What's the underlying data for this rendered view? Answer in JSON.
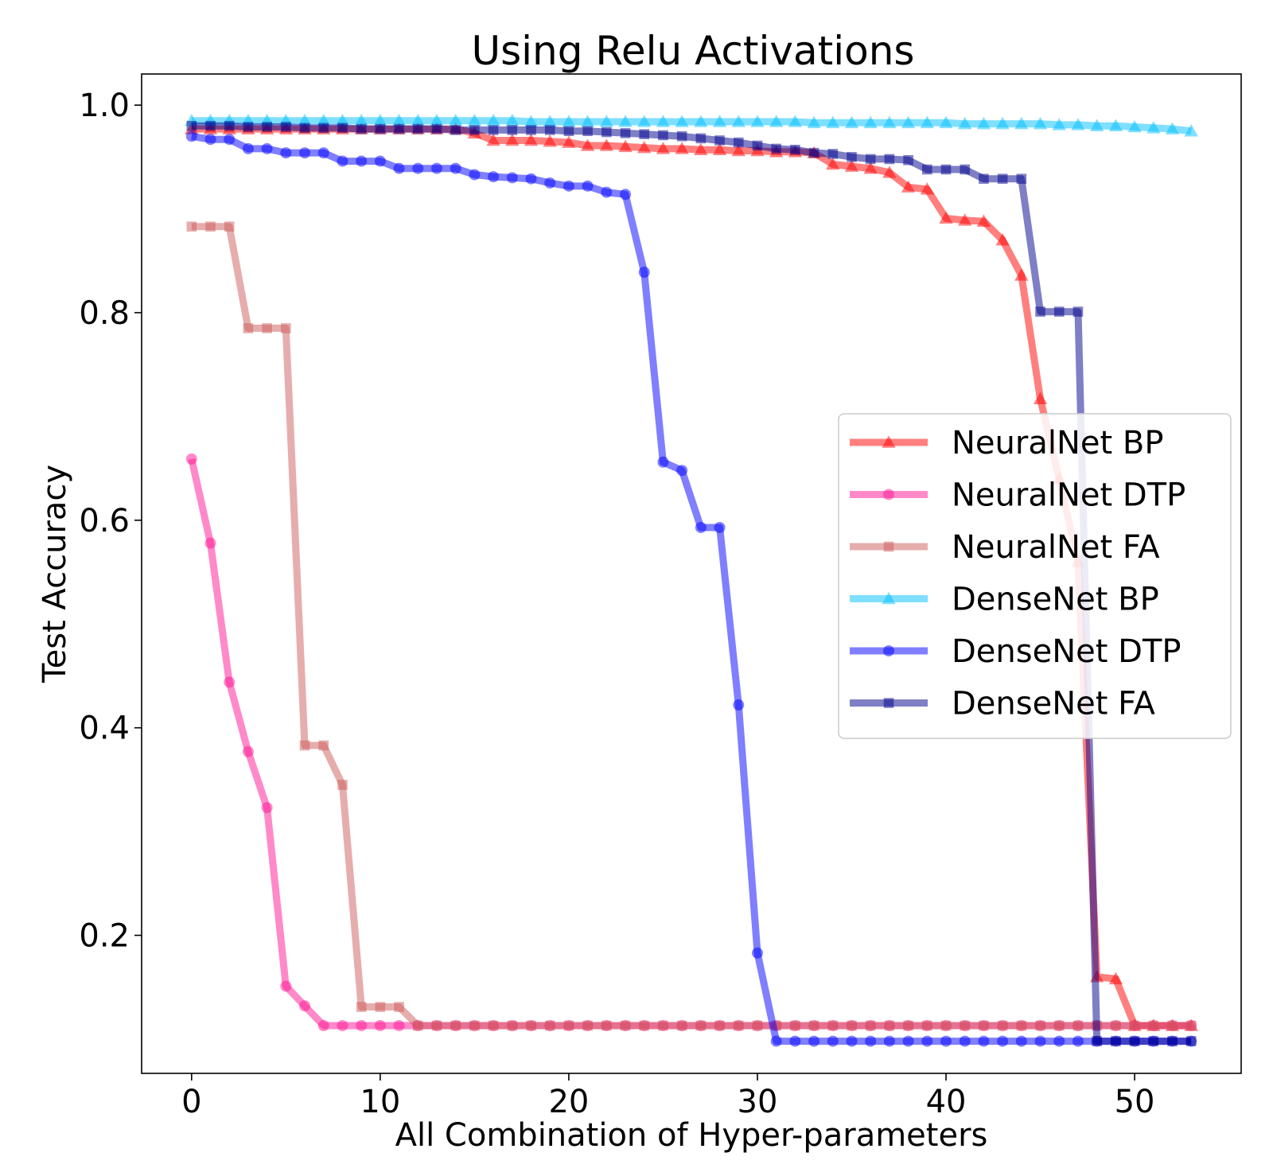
{
  "chart_data": {
    "type": "line",
    "title": "Using Relu Activations",
    "xlabel": "All Combination of Hyper-parameters",
    "ylabel": "Test Accuracy",
    "xlim": [
      -2.65,
      55.65
    ],
    "ylim": [
      0.067,
      1.03
    ],
    "xticks": [
      0,
      10,
      20,
      30,
      40,
      50
    ],
    "xtick_labels": [
      "0",
      "10",
      "20",
      "30",
      "40",
      "50"
    ],
    "yticks": [
      0.2,
      0.4,
      0.6,
      0.8,
      1.0
    ],
    "ytick_labels": [
      "0.2",
      "0.4",
      "0.6",
      "0.8",
      "1.0"
    ],
    "legend_position": "center-right",
    "series": [
      {
        "name": "NeuralNet BP",
        "color": "#ff0000",
        "marker": "triangle",
        "values": [
          0.977,
          0.977,
          0.977,
          0.977,
          0.977,
          0.977,
          0.977,
          0.977,
          0.977,
          0.977,
          0.977,
          0.977,
          0.977,
          0.977,
          0.977,
          0.973,
          0.966,
          0.966,
          0.966,
          0.965,
          0.964,
          0.961,
          0.961,
          0.96,
          0.959,
          0.958,
          0.958,
          0.957,
          0.957,
          0.956,
          0.956,
          0.955,
          0.955,
          0.954,
          0.943,
          0.941,
          0.939,
          0.935,
          0.921,
          0.919,
          0.891,
          0.889,
          0.888,
          0.87,
          0.836,
          0.717,
          0.64,
          0.56,
          0.16,
          0.158,
          0.113,
          0.113,
          0.113,
          0.113
        ]
      },
      {
        "name": "NeuralNet DTP",
        "color": "#ff1493",
        "marker": "circle",
        "values": [
          0.659,
          0.578,
          0.444,
          0.377,
          0.323,
          0.151,
          0.132,
          0.113,
          0.113,
          0.113,
          0.113,
          0.113,
          0.113,
          0.113,
          0.113,
          0.113,
          0.113,
          0.113,
          0.113,
          0.113,
          0.113,
          0.113,
          0.113,
          0.113,
          0.113,
          0.113,
          0.113,
          0.113,
          0.113,
          0.113,
          0.113,
          0.113,
          0.113,
          0.113,
          0.113,
          0.113,
          0.113,
          0.113,
          0.113,
          0.113,
          0.113,
          0.113,
          0.113,
          0.113,
          0.113,
          0.113,
          0.113,
          0.113,
          0.113,
          0.113,
          0.113,
          0.113,
          0.113,
          0.113
        ]
      },
      {
        "name": "NeuralNet FA",
        "color": "#cd5c5c",
        "marker": "square",
        "values": [
          0.883,
          0.883,
          0.883,
          0.785,
          0.785,
          0.785,
          0.383,
          0.383,
          0.345,
          0.131,
          0.131,
          0.131,
          0.113,
          0.113,
          0.113,
          0.113,
          0.113,
          0.113,
          0.113,
          0.113,
          0.113,
          0.113,
          0.113,
          0.113,
          0.113,
          0.113,
          0.113,
          0.113,
          0.113,
          0.113,
          0.113,
          0.113,
          0.113,
          0.113,
          0.113,
          0.113,
          0.113,
          0.113,
          0.113,
          0.113,
          0.113,
          0.113,
          0.113,
          0.113,
          0.113,
          0.113,
          0.113,
          0.113,
          0.113,
          0.113,
          0.113,
          0.113,
          0.113,
          0.113
        ]
      },
      {
        "name": "DenseNet BP",
        "color": "#00bfff",
        "marker": "triangle",
        "values": [
          0.985,
          0.985,
          0.985,
          0.985,
          0.985,
          0.985,
          0.985,
          0.985,
          0.985,
          0.985,
          0.985,
          0.985,
          0.985,
          0.985,
          0.985,
          0.985,
          0.985,
          0.985,
          0.984,
          0.984,
          0.984,
          0.984,
          0.984,
          0.984,
          0.984,
          0.984,
          0.984,
          0.984,
          0.984,
          0.984,
          0.984,
          0.984,
          0.984,
          0.983,
          0.983,
          0.983,
          0.983,
          0.983,
          0.983,
          0.983,
          0.983,
          0.982,
          0.982,
          0.982,
          0.982,
          0.982,
          0.981,
          0.981,
          0.98,
          0.98,
          0.979,
          0.978,
          0.977,
          0.975
        ]
      },
      {
        "name": "DenseNet DTP",
        "color": "#0000ff",
        "marker": "circle",
        "values": [
          0.97,
          0.967,
          0.967,
          0.958,
          0.958,
          0.954,
          0.954,
          0.954,
          0.946,
          0.946,
          0.946,
          0.939,
          0.939,
          0.939,
          0.939,
          0.933,
          0.931,
          0.93,
          0.929,
          0.925,
          0.922,
          0.922,
          0.916,
          0.914,
          0.839,
          0.656,
          0.648,
          0.593,
          0.593,
          0.422,
          0.183,
          0.098,
          0.098,
          0.098,
          0.098,
          0.098,
          0.098,
          0.098,
          0.098,
          0.098,
          0.098,
          0.098,
          0.098,
          0.098,
          0.098,
          0.098,
          0.098,
          0.098,
          0.098,
          0.098,
          0.098,
          0.098,
          0.098,
          0.098
        ]
      },
      {
        "name": "DenseNet FA",
        "color": "#00008b",
        "marker": "square",
        "values": [
          0.98,
          0.98,
          0.98,
          0.979,
          0.979,
          0.979,
          0.978,
          0.978,
          0.978,
          0.977,
          0.977,
          0.977,
          0.977,
          0.977,
          0.976,
          0.976,
          0.976,
          0.976,
          0.976,
          0.976,
          0.975,
          0.975,
          0.974,
          0.973,
          0.972,
          0.971,
          0.97,
          0.968,
          0.966,
          0.964,
          0.961,
          0.958,
          0.957,
          0.954,
          0.953,
          0.95,
          0.948,
          0.948,
          0.947,
          0.938,
          0.938,
          0.938,
          0.929,
          0.929,
          0.929,
          0.801,
          0.801,
          0.801,
          0.098,
          0.098,
          0.098,
          0.098,
          0.098,
          0.098
        ]
      }
    ]
  }
}
